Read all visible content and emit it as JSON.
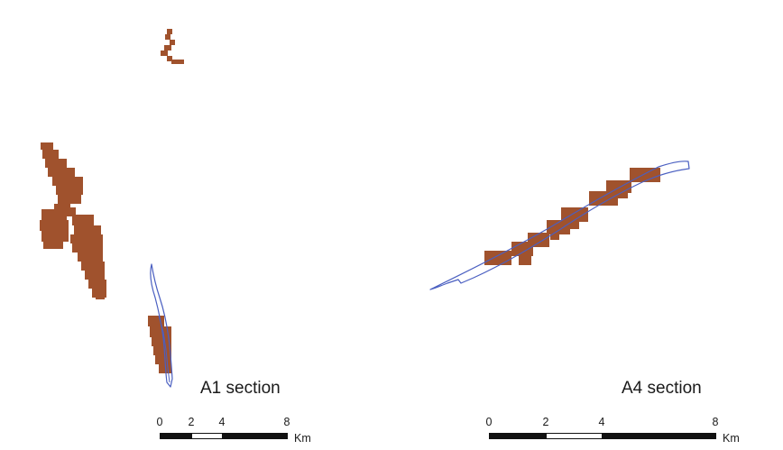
{
  "map": {
    "land_color": "#a0522d",
    "route_color": "#4a5fc1",
    "panels": [
      {
        "id": "a1",
        "label": "A1 section",
        "scale_bar": {
          "ticks": [
            "0",
            "2",
            "4",
            "8"
          ],
          "unit": "Km"
        }
      },
      {
        "id": "a4",
        "label": "A4 section",
        "scale_bar": {
          "ticks": [
            "0",
            "2",
            "4",
            "8"
          ],
          "unit": "Km"
        }
      }
    ]
  }
}
